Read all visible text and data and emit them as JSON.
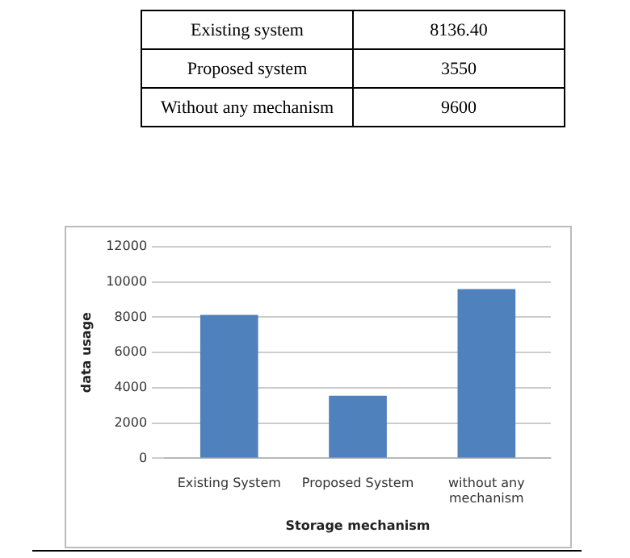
{
  "chart_data": {
    "type": "bar",
    "xlabel": "Storage mechanism",
    "ylabel": "data usage",
    "categories": [
      "Existing System",
      "Proposed System",
      "without any mechanism"
    ],
    "values": [
      8136.4,
      3550,
      9600
    ],
    "color": "#4f81bd",
    "annotations": [
      "Existing system",
      "8136.40",
      "Proposed system",
      "3550",
      "Without any mechanism",
      "9600"
    ],
    "ylim": [
      0,
      12000
    ],
    "yticks": [
      0,
      2000,
      4000,
      6000,
      8000,
      10000,
      12000
    ],
    "grid": "y",
    "legend": false
  }
}
